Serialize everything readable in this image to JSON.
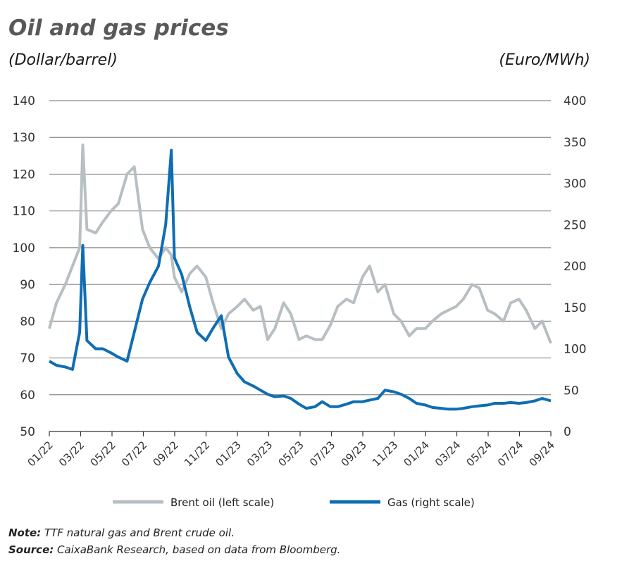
{
  "chart_data": {
    "type": "line",
    "title": "Oil and gas prices",
    "ylabel_left": "(Dollar/barrel)",
    "ylabel_right": "(Euro/MWh)",
    "ylim_left": [
      50,
      140
    ],
    "ylim_right": [
      0,
      400
    ],
    "yticks_left": [
      "140",
      "130",
      "120",
      "110",
      "100",
      "90",
      "80",
      "70",
      "60",
      "50"
    ],
    "yticks_right": [
      "400",
      "350",
      "300",
      "250",
      "200",
      "150",
      "100",
      "50",
      "0"
    ],
    "xticks": [
      "01/22",
      "03/22",
      "05/22",
      "07/22",
      "09/22",
      "11/22",
      "01/23",
      "03/23",
      "05/23",
      "07/23",
      "09/23",
      "11/23",
      "01/24",
      "03/24",
      "05/24",
      "07/24",
      "09/24"
    ],
    "grid": true,
    "legend_position": "bottom",
    "x": [
      "2022-01-01",
      "2022-01-15",
      "2022-02-01",
      "2022-02-15",
      "2022-03-01",
      "2022-03-07",
      "2022-03-15",
      "2022-04-01",
      "2022-04-15",
      "2022-05-01",
      "2022-05-15",
      "2022-06-01",
      "2022-06-15",
      "2022-07-01",
      "2022-07-15",
      "2022-08-01",
      "2022-08-15",
      "2022-08-26",
      "2022-09-01",
      "2022-09-15",
      "2022-10-01",
      "2022-10-15",
      "2022-11-01",
      "2022-11-15",
      "2022-12-01",
      "2022-12-15",
      "2023-01-01",
      "2023-01-15",
      "2023-02-01",
      "2023-02-15",
      "2023-03-01",
      "2023-03-15",
      "2023-04-01",
      "2023-04-15",
      "2023-05-01",
      "2023-05-15",
      "2023-06-01",
      "2023-06-15",
      "2023-07-01",
      "2023-07-15",
      "2023-08-01",
      "2023-08-15",
      "2023-09-01",
      "2023-09-15",
      "2023-10-01",
      "2023-10-15",
      "2023-11-01",
      "2023-11-15",
      "2023-12-01",
      "2023-12-15",
      "2024-01-01",
      "2024-01-15",
      "2024-02-01",
      "2024-02-15",
      "2024-03-01",
      "2024-03-15",
      "2024-04-01",
      "2024-04-15",
      "2024-05-01",
      "2024-05-15",
      "2024-06-01",
      "2024-06-15",
      "2024-07-01",
      "2024-07-15",
      "2024-08-01",
      "2024-08-15",
      "2024-09-01"
    ],
    "series": [
      {
        "name": "Brent oil (left scale)",
        "axis": "left",
        "color": "#b7bfc3",
        "values": [
          78,
          85,
          90,
          95,
          100,
          128,
          105,
          104,
          107,
          110,
          112,
          120,
          122,
          105,
          100,
          97,
          100,
          98,
          92,
          88,
          93,
          95,
          92,
          85,
          78,
          82,
          84,
          86,
          83,
          84,
          75,
          78,
          85,
          82,
          75,
          76,
          75,
          75,
          79,
          84,
          86,
          85,
          92,
          95,
          88,
          90,
          82,
          80,
          76,
          78,
          78,
          80,
          82,
          83,
          84,
          86,
          90,
          89,
          83,
          82,
          80,
          85,
          86,
          83,
          78,
          80,
          74
        ]
      },
      {
        "name": "Gas (right scale)",
        "axis": "right",
        "color": "#0f6db3",
        "values": [
          85,
          80,
          78,
          75,
          120,
          225,
          110,
          100,
          100,
          95,
          90,
          85,
          120,
          160,
          180,
          200,
          250,
          340,
          210,
          190,
          150,
          120,
          110,
          125,
          140,
          90,
          70,
          60,
          55,
          50,
          45,
          42,
          43,
          40,
          33,
          28,
          30,
          36,
          30,
          30,
          33,
          36,
          36,
          38,
          40,
          50,
          48,
          45,
          40,
          34,
          32,
          29,
          28,
          27,
          27,
          28,
          30,
          31,
          32,
          34,
          34,
          35,
          34,
          35,
          37,
          40,
          37
        ]
      }
    ]
  },
  "footer": {
    "note_label": "Note:",
    "note_text": "TTF natural gas and Brent crude oil.",
    "source_label": "Source:",
    "source_text": "CaixaBank Research, based on data from Bloomberg."
  }
}
